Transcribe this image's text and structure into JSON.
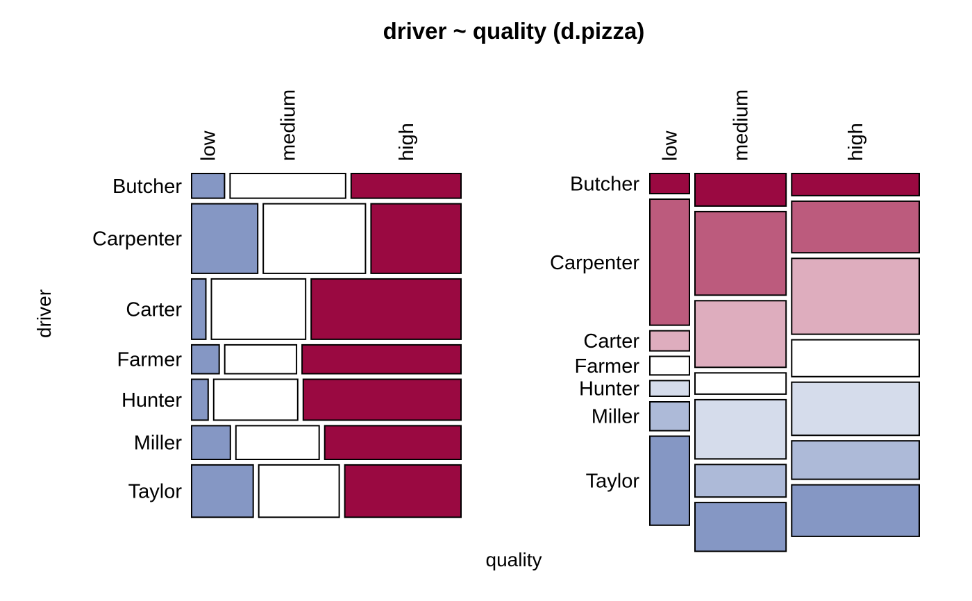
{
  "chart_data": {
    "type": "mosaic",
    "title": "driver ~ quality (d.pizza)",
    "xlabel": "quality",
    "ylabel": "driver",
    "rows": [
      "Butcher",
      "Carpenter",
      "Carter",
      "Farmer",
      "Hunter",
      "Miller",
      "Taylor"
    ],
    "columns": [
      "low",
      "medium",
      "high"
    ],
    "colors": {
      "low": "#8597C4",
      "medium": "#FFFFFF",
      "high": "#9A0941"
    },
    "panels": [
      {
        "name": "row-proportions",
        "description_axis": "rows split by quality",
        "row_weights": [
          0.0835,
          0.2354,
          0.2043,
          0.0976,
          0.1383,
          0.114,
          0.177
        ],
        "row_percentages": [
          [
            0.1273,
            0.4473,
            0.4254
          ],
          [
            0.2558,
            0.3958,
            0.3484
          ],
          [
            0.055,
            0.3648,
            0.5802
          ],
          [
            0.1068,
            0.278,
            0.6152
          ],
          [
            0.0639,
            0.3253,
            0.6108
          ],
          [
            0.15,
            0.3224,
            0.5276
          ],
          [
            0.2385,
            0.3116,
            0.4499
          ]
        ]
      },
      {
        "name": "column-proportions",
        "description_axis": "columns split by driver",
        "column_weights": [
          0.1533,
          0.3528,
          0.4938
        ],
        "column_percentages": [
          [
            0.068,
            0.11,
            0.075
          ],
          [
            0.4263,
            0.2827,
            0.1745
          ],
          [
            0.068,
            0.2254,
            0.2565
          ],
          [
            0.063,
            0.0718,
            0.1247
          ],
          [
            0.053,
            0.2004,
            0.1797
          ],
          [
            0.0976,
            0.11,
            0.13
          ],
          [
            0.3011,
            0.165,
            0.1745
          ]
        ],
        "shades": [
          [
            "#9A0941",
            "#9A0941",
            "#9A0941"
          ],
          [
            "#BC5B7D",
            "#BC5B7D",
            "#BC5B7D"
          ],
          [
            "#DEADBE",
            "#DEADBE",
            "#DEADBE"
          ],
          [
            "#FFFFFF",
            "#FFFFFF",
            "#FFFFFF"
          ],
          [
            "#D5DCEB",
            "#D5DCEB",
            "#D5DCEB"
          ],
          [
            "#ADBAD8",
            "#ADBAD8",
            "#ADBAD8"
          ],
          [
            "#8597C4",
            "#8597C4",
            "#8597C4"
          ]
        ]
      }
    ]
  }
}
